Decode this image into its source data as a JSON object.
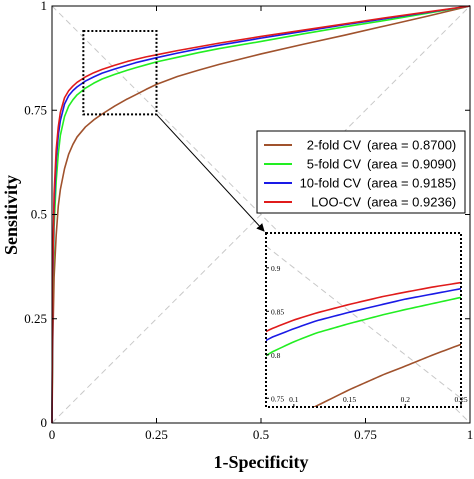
{
  "chart_data": {
    "type": "line",
    "title": "",
    "xlabel": "1-Specificity",
    "ylabel": "Sensitivity",
    "xlim": [
      0,
      1
    ],
    "ylim": [
      0,
      1
    ],
    "xticks": [
      "0",
      "0.25",
      "0.5",
      "0.75",
      "1"
    ],
    "yticks": [
      "0",
      "0.25",
      "0.5",
      "0.75",
      "1"
    ],
    "grid": false,
    "legend_position": "right",
    "reference_lines": [
      "diagonal y=x (dashed gray)",
      "anti-diagonal y=1-x (dashed gray)"
    ],
    "series": [
      {
        "name": "2-fold CV",
        "area_label": "(area = 0.8700)",
        "color": "#a0522d",
        "x": [
          0,
          0.002,
          0.005,
          0.01,
          0.015,
          0.02,
          0.03,
          0.04,
          0.05,
          0.06,
          0.08,
          0.1,
          0.12,
          0.15,
          0.18,
          0.2,
          0.225,
          0.25,
          0.3,
          0.35,
          0.4,
          0.5,
          0.6,
          0.7,
          0.8,
          0.9,
          1.0
        ],
        "y": [
          0,
          0.2,
          0.35,
          0.45,
          0.52,
          0.56,
          0.61,
          0.645,
          0.668,
          0.686,
          0.71,
          0.727,
          0.741,
          0.76,
          0.777,
          0.787,
          0.8,
          0.812,
          0.831,
          0.846,
          0.86,
          0.885,
          0.908,
          0.93,
          0.953,
          0.976,
          1.0
        ]
      },
      {
        "name": "5-fold CV",
        "area_label": "(area = 0.9090)",
        "color": "#22ee22",
        "x": [
          0,
          0.002,
          0.005,
          0.01,
          0.015,
          0.02,
          0.03,
          0.04,
          0.05,
          0.06,
          0.08,
          0.1,
          0.12,
          0.15,
          0.18,
          0.2,
          0.225,
          0.25,
          0.3,
          0.35,
          0.4,
          0.5,
          0.6,
          0.7,
          0.8,
          0.9,
          1.0
        ],
        "y": [
          0,
          0.3,
          0.47,
          0.58,
          0.645,
          0.69,
          0.735,
          0.76,
          0.775,
          0.787,
          0.803,
          0.815,
          0.825,
          0.836,
          0.846,
          0.852,
          0.859,
          0.866,
          0.877,
          0.888,
          0.898,
          0.915,
          0.933,
          0.95,
          0.966,
          0.983,
          1.0
        ]
      },
      {
        "name": "10-fold CV",
        "area_label": "(area = 0.9185)",
        "color": "#1a1ae6",
        "x": [
          0,
          0.002,
          0.005,
          0.01,
          0.015,
          0.02,
          0.03,
          0.04,
          0.05,
          0.06,
          0.08,
          0.1,
          0.12,
          0.15,
          0.18,
          0.2,
          0.225,
          0.25,
          0.3,
          0.35,
          0.4,
          0.5,
          0.6,
          0.7,
          0.8,
          0.9,
          1.0
        ],
        "y": [
          0,
          0.35,
          0.52,
          0.63,
          0.69,
          0.725,
          0.765,
          0.785,
          0.797,
          0.806,
          0.82,
          0.83,
          0.839,
          0.849,
          0.858,
          0.864,
          0.87,
          0.876,
          0.887,
          0.897,
          0.906,
          0.923,
          0.939,
          0.955,
          0.97,
          0.985,
          1.0
        ]
      },
      {
        "name": "LOO-CV",
        "area_label": "(area = 0.9236)",
        "color": "#e01b1b",
        "x": [
          0,
          0.002,
          0.005,
          0.01,
          0.015,
          0.02,
          0.03,
          0.04,
          0.05,
          0.06,
          0.08,
          0.1,
          0.12,
          0.15,
          0.18,
          0.2,
          0.225,
          0.25,
          0.3,
          0.35,
          0.4,
          0.5,
          0.6,
          0.7,
          0.8,
          0.9,
          1.0
        ],
        "y": [
          0,
          0.38,
          0.55,
          0.655,
          0.71,
          0.745,
          0.78,
          0.797,
          0.808,
          0.817,
          0.83,
          0.84,
          0.848,
          0.858,
          0.867,
          0.872,
          0.878,
          0.883,
          0.893,
          0.902,
          0.911,
          0.927,
          0.942,
          0.957,
          0.972,
          0.986,
          1.0
        ]
      }
    ],
    "inset": {
      "source_box": {
        "x": [
          0.075,
          0.25
        ],
        "y": [
          0.74,
          0.94
        ]
      },
      "xlim": [
        0.075,
        0.25
      ],
      "ylim": [
        0.74,
        0.94
      ],
      "xticks": [
        "0.1",
        "0.15",
        "0.2",
        "0.25"
      ],
      "xtick_values": [
        0.1,
        0.15,
        0.2,
        0.25
      ],
      "yticks": [
        "0.75",
        "0.8",
        "0.85",
        "0.9"
      ],
      "ytick_values": [
        0.75,
        0.8,
        0.85,
        0.9
      ]
    }
  }
}
